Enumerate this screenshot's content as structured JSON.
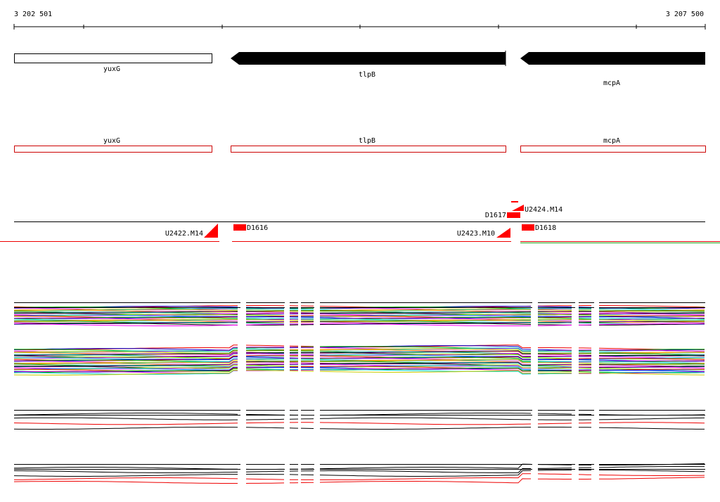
{
  "ruler": {
    "start": "3 202 501",
    "end": "3 207 500"
  },
  "genes": [
    {
      "label": "yuxG"
    },
    {
      "label": "tlpB"
    },
    {
      "label": "mcpA"
    }
  ],
  "gene_boxes": [
    {
      "label": "yuxG"
    },
    {
      "label": "tlpB"
    },
    {
      "label": "mcpA"
    }
  ],
  "features": [
    {
      "label": "U2422.M14"
    },
    {
      "label": "D1616"
    },
    {
      "label": "D1617"
    },
    {
      "label": "U2424.M14"
    },
    {
      "label": "U2423.M10"
    },
    {
      "label": "D1618"
    }
  ]
}
